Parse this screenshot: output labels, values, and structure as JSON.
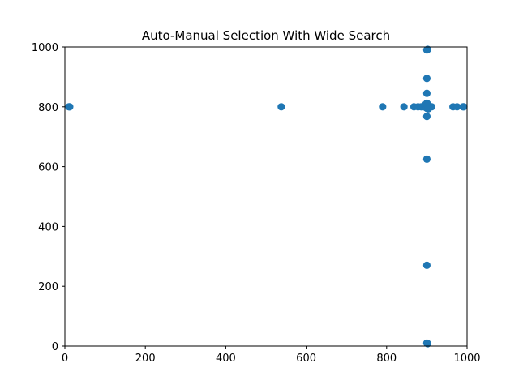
{
  "chart_data": {
    "type": "scatter",
    "title": "Auto-Manual Selection With Wide Search",
    "xlabel": "",
    "ylabel": "",
    "xlim": [
      0,
      1000
    ],
    "ylim": [
      0,
      1000
    ],
    "x_ticks": [
      0,
      200,
      400,
      600,
      800,
      1000
    ],
    "y_ticks": [
      0,
      200,
      400,
      600,
      800,
      1000
    ],
    "x_tick_labels": [
      "0",
      "200",
      "400",
      "600",
      "800",
      "1000"
    ],
    "y_tick_labels": [
      "0",
      "200",
      "400",
      "600",
      "800",
      "1000"
    ],
    "grid": false,
    "legend": "none",
    "marker_color": "#1f77b4",
    "series": [
      {
        "points": [
          [
            10,
            800
          ],
          [
            12,
            800
          ],
          [
            538,
            800
          ],
          [
            790,
            800
          ],
          [
            843,
            800
          ],
          [
            868,
            800
          ],
          [
            878,
            800
          ],
          [
            886,
            800
          ],
          [
            892,
            800
          ],
          [
            896,
            800
          ],
          [
            900,
            800
          ],
          [
            904,
            800
          ],
          [
            908,
            800
          ],
          [
            912,
            800
          ],
          [
            897,
            808
          ],
          [
            903,
            808
          ],
          [
            900,
            795
          ],
          [
            900,
            812
          ],
          [
            903,
            793
          ],
          [
            965,
            800
          ],
          [
            975,
            800
          ],
          [
            990,
            800
          ],
          [
            992,
            800
          ],
          [
            900,
            990
          ],
          [
            902,
            992
          ],
          [
            900,
            895
          ],
          [
            900,
            845
          ],
          [
            900,
            768
          ],
          [
            900,
            625
          ],
          [
            900,
            270
          ],
          [
            900,
            10
          ],
          [
            902,
            8
          ]
        ]
      }
    ]
  }
}
